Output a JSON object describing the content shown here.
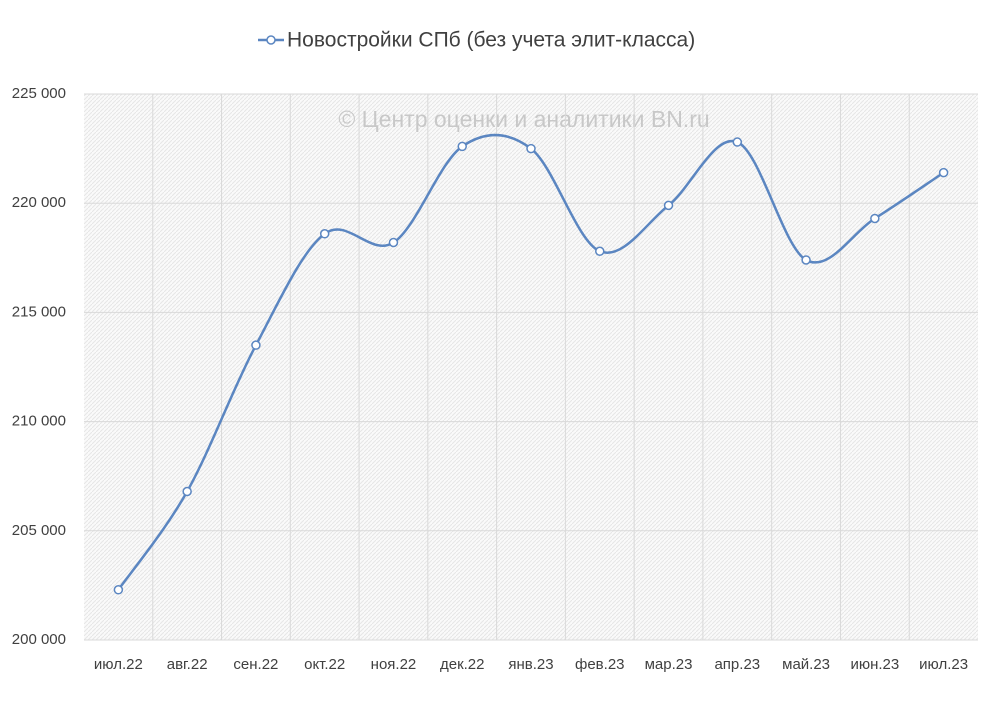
{
  "chart_data": {
    "type": "line",
    "series": [
      {
        "name": "Новостройки СПб (без учета элит-класса)",
        "color": "#5b86c1",
        "values": [
          202300,
          206800,
          213500,
          218600,
          218200,
          222600,
          222500,
          217800,
          219900,
          222800,
          217400,
          219300,
          221400
        ]
      }
    ],
    "categories": [
      "июл.22",
      "авг.22",
      "сен.22",
      "окт.22",
      "ноя.22",
      "дек.22",
      "янв.23",
      "фев.23",
      "мар.23",
      "апр.23",
      "май.23",
      "июн.23",
      "июл.23"
    ],
    "annotation": "© Центр оценки и аналитики BN.ru",
    "ylim": [
      200000,
      225000
    ],
    "yticks": [
      {
        "value": 200000,
        "label": "200 000"
      },
      {
        "value": 205000,
        "label": "205 000"
      },
      {
        "value": 210000,
        "label": "210 000"
      },
      {
        "value": 215000,
        "label": "215 000"
      },
      {
        "value": 220000,
        "label": "220 000"
      },
      {
        "value": 225000,
        "label": "225 000"
      }
    ],
    "grid": true,
    "legend": "top",
    "smooth": true
  }
}
